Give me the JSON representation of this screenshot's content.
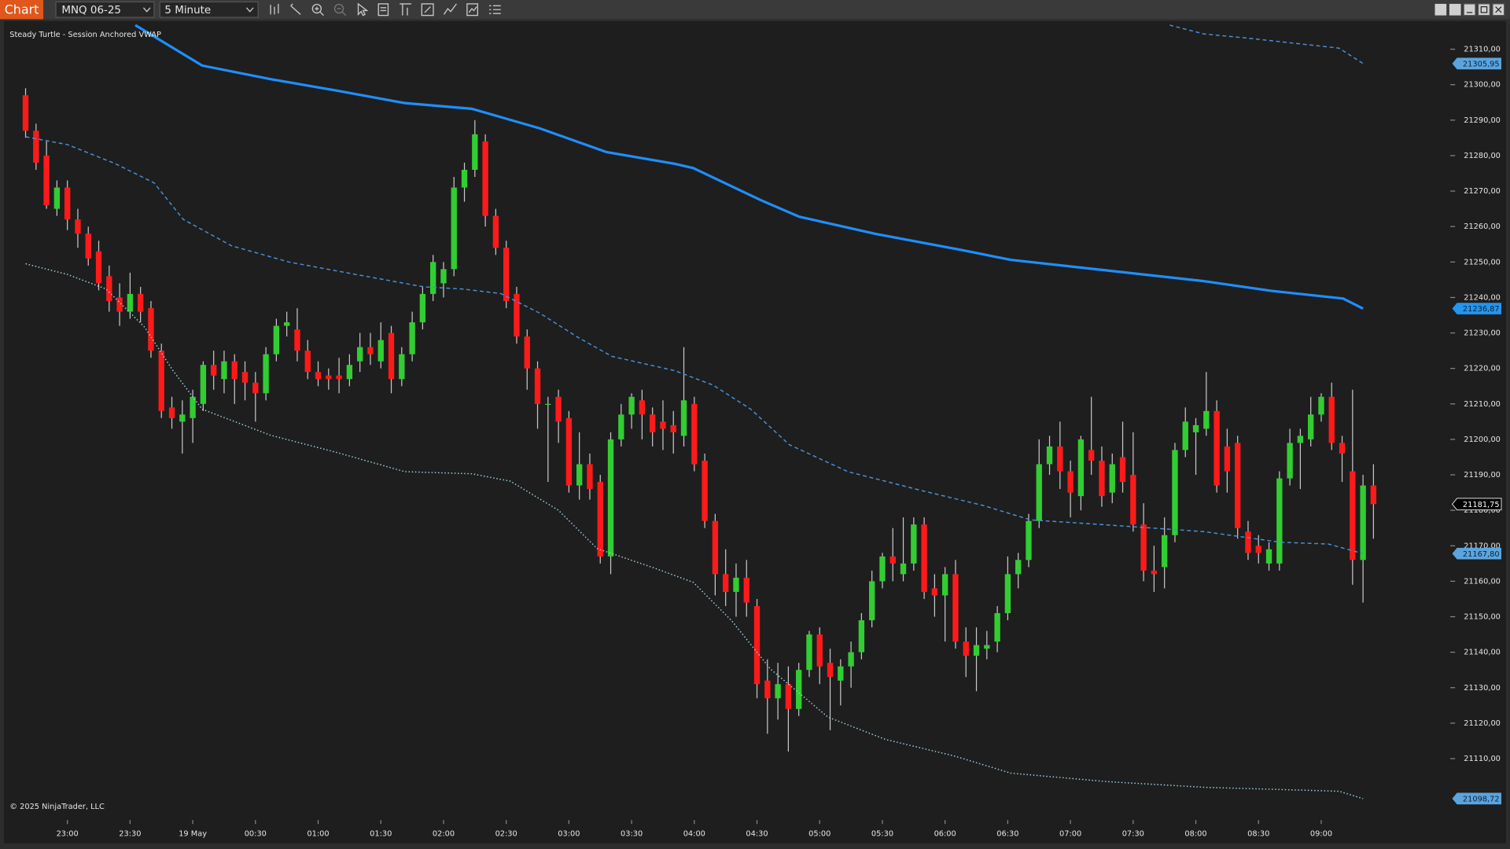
{
  "toolbar": {
    "tab": "Chart",
    "instrument": "MNQ 06-25",
    "interval": "5 Minute"
  },
  "chart_data": {
    "type": "candlestick",
    "title": "Steady Turtle - Session Anchored VWAP",
    "annotation": "© 2025 NinjaTrader, LLC",
    "up_color": "#32cd32",
    "down_color": "#ff1a1a",
    "wick_color": "#c8c8c8",
    "xlim": [
      -2.08,
      135.8
    ],
    "ylim": [
      21093.2,
      21317.9
    ],
    "yticks": [
      {
        "value": 21310,
        "label": "21310,00"
      },
      {
        "value": 21300,
        "label": "21300,00"
      },
      {
        "value": 21290,
        "label": "21290,00"
      },
      {
        "value": 21280,
        "label": "21280,00"
      },
      {
        "value": 21270,
        "label": "21270,00"
      },
      {
        "value": 21260,
        "label": "21260,00"
      },
      {
        "value": 21250,
        "label": "21250,00"
      },
      {
        "value": 21240,
        "label": "21240,00"
      },
      {
        "value": 21230,
        "label": "21230,00"
      },
      {
        "value": 21220,
        "label": "21220,00"
      },
      {
        "value": 21210,
        "label": "21210,00"
      },
      {
        "value": 21200,
        "label": "21200,00"
      },
      {
        "value": 21190,
        "label": "21190,00"
      },
      {
        "value": 21180,
        "label": "21180,00"
      },
      {
        "value": 21170,
        "label": "21170,00"
      },
      {
        "value": 21160,
        "label": "21160,00"
      },
      {
        "value": 21150,
        "label": "21150,00"
      },
      {
        "value": 21140,
        "label": "21140,00"
      },
      {
        "value": 21130,
        "label": "21130,00"
      },
      {
        "value": 21120,
        "label": "21120,00"
      },
      {
        "value": 21110,
        "label": "21110,00"
      }
    ],
    "xticks": [
      {
        "value": 4,
        "label": "23:00"
      },
      {
        "value": 10,
        "label": "23:30"
      },
      {
        "value": 16,
        "label": "19 May"
      },
      {
        "value": 22,
        "label": "00:30"
      },
      {
        "value": 28,
        "label": "01:00"
      },
      {
        "value": 34,
        "label": "01:30"
      },
      {
        "value": 40,
        "label": "02:00"
      },
      {
        "value": 46,
        "label": "02:30"
      },
      {
        "value": 52,
        "label": "03:00"
      },
      {
        "value": 58,
        "label": "03:30"
      },
      {
        "value": 64,
        "label": "04:00"
      },
      {
        "value": 70,
        "label": "04:30"
      },
      {
        "value": 76,
        "label": "05:00"
      },
      {
        "value": 82,
        "label": "05:30"
      },
      {
        "value": 88,
        "label": "06:00"
      },
      {
        "value": 94,
        "label": "06:30"
      },
      {
        "value": 100,
        "label": "07:00"
      },
      {
        "value": 106,
        "label": "07:30"
      },
      {
        "value": 112,
        "label": "08:00"
      },
      {
        "value": 118,
        "label": "08:30"
      },
      {
        "value": 124,
        "label": "09:00"
      }
    ],
    "candles": [
      [
        21297,
        21299,
        21285,
        21287
      ],
      [
        21287,
        21289,
        21276,
        21278
      ],
      [
        21280,
        21284,
        21265,
        21266
      ],
      [
        21265,
        21273,
        21263,
        21271
      ],
      [
        21271,
        21273,
        21259,
        21262
      ],
      [
        21262,
        21265,
        21254,
        21258
      ],
      [
        21258,
        21260,
        21249,
        21251
      ],
      [
        21253,
        21256,
        21242,
        21244
      ],
      [
        21246,
        21249,
        21236,
        21239
      ],
      [
        21240,
        21244,
        21232,
        21236
      ],
      [
        21236,
        21247,
        21234,
        21241
      ],
      [
        21241,
        21243,
        21233,
        21236
      ],
      [
        21237,
        21239,
        21223,
        21225
      ],
      [
        21225,
        21227,
        21206,
        21208
      ],
      [
        21209,
        21212,
        21203,
        21206
      ],
      [
        21205,
        21211,
        21196,
        21207
      ],
      [
        21206,
        21214,
        21199,
        21212
      ],
      [
        21210,
        21222,
        21208,
        21221
      ],
      [
        21221,
        21225,
        21214,
        21218
      ],
      [
        21217,
        21225,
        21213,
        21222
      ],
      [
        21222,
        21224,
        21210,
        21217
      ],
      [
        21219,
        21222,
        21211,
        21216
      ],
      [
        21216,
        21219,
        21205,
        21213
      ],
      [
        21213,
        21226,
        21211,
        21224
      ],
      [
        21224,
        21234,
        21222,
        21232
      ],
      [
        21232,
        21236,
        21229,
        21233
      ],
      [
        21231,
        21237,
        21222,
        21225
      ],
      [
        21225,
        21228,
        21217,
        21219
      ],
      [
        21219,
        21222,
        21215,
        21217
      ],
      [
        21218,
        21220,
        21214,
        21217
      ],
      [
        21218,
        21223,
        21213,
        21217
      ],
      [
        21217,
        21224,
        21215,
        21221
      ],
      [
        21222,
        21230,
        21219,
        21226
      ],
      [
        21226,
        21230,
        21221,
        21224
      ],
      [
        21222,
        21233,
        21220,
        21228
      ],
      [
        21230,
        21232,
        21213,
        21217
      ],
      [
        21217,
        21226,
        21215,
        21224
      ],
      [
        21224,
        21236,
        21222,
        21233
      ],
      [
        21233,
        21243,
        21231,
        21241
      ],
      [
        21241,
        21252,
        21239,
        21250
      ],
      [
        21244,
        21250,
        21240,
        21248
      ],
      [
        21248,
        21274,
        21246,
        21271
      ],
      [
        21271,
        21278,
        21267,
        21276
      ],
      [
        21276,
        21290,
        21274,
        21286
      ],
      [
        21284,
        21286,
        21260,
        21263
      ],
      [
        21263,
        21265,
        21252,
        21254
      ],
      [
        21254,
        21256,
        21237,
        21239
      ],
      [
        21241,
        21243,
        21227,
        21229
      ],
      [
        21229,
        21231,
        21214,
        21220
      ],
      [
        21220,
        21222,
        21203,
        21210
      ],
      [
        21210,
        21212,
        21188,
        21210
      ],
      [
        21212,
        21214,
        21199,
        21205
      ],
      [
        21206,
        21208,
        21185,
        21187
      ],
      [
        21187,
        21202,
        21183,
        21193
      ],
      [
        21193,
        21196,
        21183,
        21186
      ],
      [
        21188,
        21190,
        21165,
        21167
      ],
      [
        21167,
        21202,
        21162,
        21200
      ],
      [
        21200,
        21210,
        21198,
        21207
      ],
      [
        21207,
        21213,
        21203,
        21212
      ],
      [
        21211,
        21214,
        21200,
        21207
      ],
      [
        21207,
        21209,
        21198,
        21202
      ],
      [
        21205,
        21211,
        21197,
        21203
      ],
      [
        21204,
        21208,
        21196,
        21202
      ],
      [
        21201,
        21226,
        21198,
        21211
      ],
      [
        21210,
        21212,
        21191,
        21193
      ],
      [
        21194,
        21196,
        21175,
        21177
      ],
      [
        21177,
        21179,
        21156,
        21162
      ],
      [
        21162,
        21169,
        21153,
        21157
      ],
      [
        21157,
        21165,
        21150,
        21161
      ],
      [
        21161,
        21166,
        21150,
        21154
      ],
      [
        21153,
        21155,
        21127,
        21131
      ],
      [
        21132,
        21138,
        21117,
        21127
      ],
      [
        21127,
        21137,
        21121,
        21131
      ],
      [
        21131,
        21136,
        21112,
        21124
      ],
      [
        21124,
        21137,
        21122,
        21135
      ],
      [
        21135,
        21146,
        21133,
        21145
      ],
      [
        21145,
        21147,
        21131,
        21136
      ],
      [
        21137,
        21141,
        21118,
        21133
      ],
      [
        21132,
        21138,
        21125,
        21136
      ],
      [
        21136,
        21143,
        21130,
        21140
      ],
      [
        21140,
        21151,
        21138,
        21149
      ],
      [
        21149,
        21163,
        21147,
        21160
      ],
      [
        21160,
        21168,
        21158,
        21167
      ],
      [
        21167,
        21175,
        21160,
        21165
      ],
      [
        21162,
        21178,
        21160,
        21165
      ],
      [
        21165,
        21178,
        21163,
        21176
      ],
      [
        21176,
        21178,
        21155,
        21157
      ],
      [
        21158,
        21162,
        21150,
        21156
      ],
      [
        21156,
        21164,
        21143,
        21162
      ],
      [
        21162,
        21166,
        21141,
        21143
      ],
      [
        21143,
        21147,
        21133,
        21139
      ],
      [
        21139,
        21147,
        21129,
        21142
      ],
      [
        21141,
        21146,
        21138,
        21142
      ],
      [
        21143,
        21153,
        21140,
        21151
      ],
      [
        21151,
        21167,
        21149,
        21162
      ],
      [
        21162,
        21168,
        21158,
        21166
      ],
      [
        21166,
        21179,
        21164,
        21177
      ],
      [
        21177,
        21200,
        21175,
        21193
      ],
      [
        21193,
        21201,
        21190,
        21198
      ],
      [
        21198,
        21205,
        21186,
        21191
      ],
      [
        21191,
        21194,
        21178,
        21185
      ],
      [
        21184,
        21201,
        21180,
        21200
      ],
      [
        21197,
        21212,
        21190,
        21194
      ],
      [
        21194,
        21198,
        21181,
        21184
      ],
      [
        21185,
        21196,
        21182,
        21193
      ],
      [
        21195,
        21205,
        21185,
        21188
      ],
      [
        21190,
        21202,
        21174,
        21176
      ],
      [
        21176,
        21182,
        21160,
        21163
      ],
      [
        21163,
        21170,
        21157,
        21162
      ],
      [
        21164,
        21178,
        21158,
        21173
      ],
      [
        21173,
        21199,
        21171,
        21197
      ],
      [
        21197,
        21209,
        21195,
        21205
      ],
      [
        21202,
        21206,
        21190,
        21204
      ],
      [
        21203,
        21219,
        21201,
        21208
      ],
      [
        21208,
        21211,
        21185,
        21187
      ],
      [
        21198,
        21203,
        21185,
        21191
      ],
      [
        21199,
        21201,
        21172,
        21175
      ],
      [
        21174,
        21177,
        21166,
        21168
      ],
      [
        21170,
        21173,
        21165,
        21168
      ],
      [
        21165,
        21171,
        21163,
        21169
      ],
      [
        21165,
        21191,
        21163,
        21189
      ],
      [
        21189,
        21203,
        21187,
        21199
      ],
      [
        21199,
        21203,
        21186,
        21201
      ],
      [
        21200,
        21212,
        21198,
        21207
      ],
      [
        21207,
        21213,
        21205,
        21212
      ],
      [
        21212,
        21216,
        21197,
        21199
      ],
      [
        21199,
        21201,
        21188,
        21196
      ],
      [
        21191,
        21214,
        21159,
        21166
      ],
      [
        21166,
        21190,
        21154,
        21187
      ],
      [
        21187,
        21193,
        21172,
        21181.75
      ]
    ],
    "last_price": {
      "value": 21181.75,
      "label": "21181,75"
    },
    "series": [
      {
        "style": "dashed",
        "color": "#4a8fd6",
        "x": [
          109.5,
          112.8,
          117.4,
          125.7,
          128
        ],
        "values": [
          21316.8,
          21314.3,
          21313,
          21310.3,
          21305.95
        ],
        "end_label": {
          "value": 21305.95,
          "label": "21305,95"
        }
      },
      {
        "style": "solid",
        "color": "#1e8fff",
        "x": [
          10.5,
          16.9,
          23.4,
          29.8,
          36.3,
          42.7,
          49.2,
          55.6,
          62.1,
          63.9,
          70.4,
          74,
          81.4,
          89.7,
          94.3,
          102.6,
          112.8,
          119.2,
          126.1,
          128
        ],
        "values": [
          21316.8,
          21305.4,
          21301.6,
          21298.3,
          21294.8,
          21293.2,
          21287.7,
          21281,
          21277.7,
          21276.5,
          21267.4,
          21262.8,
          21257.9,
          21253.3,
          21250.6,
          21247.9,
          21244.6,
          21241.9,
          21239.7,
          21236.87
        ],
        "end_label": {
          "value": 21236.87,
          "label": "21236,87"
        }
      },
      {
        "style": "dashed",
        "color": "#4a8fd6",
        "x": [
          0,
          4,
          8.6,
          12.3,
          15.1,
          19.7,
          25.2,
          31.6,
          38.1,
          41.8,
          45.5,
          49.2,
          52.8,
          56.1,
          62.1,
          65.8,
          69.4,
          73.1,
          78.7,
          86,
          91.6,
          96.2,
          103.5,
          112.8,
          120.1,
          124.7,
          128
        ],
        "values": [
          21285.3,
          21283.1,
          21277.7,
          21272.3,
          21262,
          21254.6,
          21250,
          21246.5,
          21243,
          21242.4,
          21241.1,
          21235.6,
          21228.9,
          21223.4,
          21219.4,
          21215.3,
          21208.5,
          21198.5,
          21190.9,
          21185.4,
          21181.4,
          21177.3,
          21175.9,
          21174,
          21171,
          21170.5,
          21167.8
        ],
        "end_label": {
          "value": 21167.8,
          "label": "21167,80"
        }
      },
      {
        "style": "dotted",
        "color": "#9fd6e8",
        "x": [
          0,
          4,
          7.7,
          11.4,
          14.1,
          16.9,
          23.4,
          29.8,
          36.3,
          42.7,
          46.4,
          51,
          54.7,
          60.2,
          63.9,
          67.6,
          71.3,
          76.8,
          82.3,
          88.8,
          94.3,
          103.5,
          112.8,
          125.7,
          128
        ],
        "values": [
          21249.5,
          21246.5,
          21242.4,
          21231.6,
          21219.4,
          21208.5,
          21201.2,
          21196.3,
          21190.9,
          21190.3,
          21188.2,
          21180,
          21169.2,
          21163.7,
          21159.7,
          21148.8,
          21135.2,
          21121.7,
          21115.4,
          21110.8,
          21105.9,
          21103.5,
          21101.9,
          21100.8,
          21098.72
        ],
        "end_label": {
          "value": 21098.72,
          "label": "21098,72"
        }
      }
    ]
  }
}
